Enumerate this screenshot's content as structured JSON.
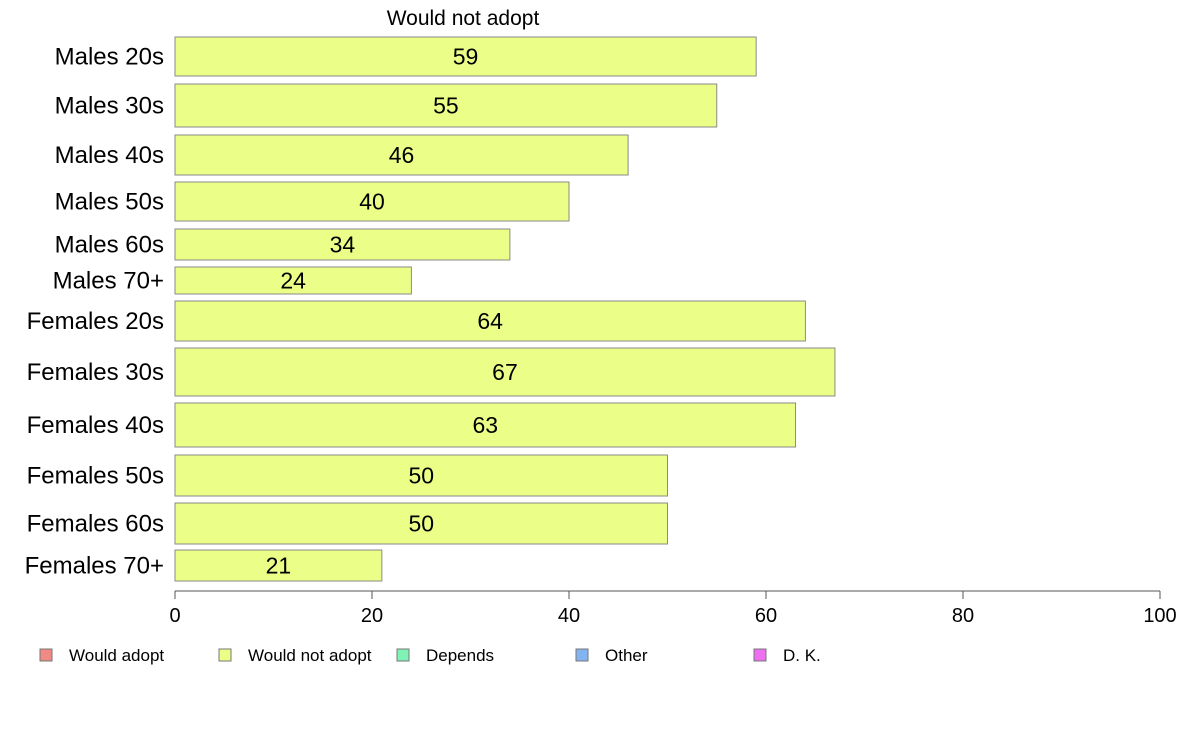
{
  "chart_data": {
    "type": "bar",
    "orientation": "horizontal",
    "title": "Would not adopt",
    "categories": [
      "Males 20s",
      "Males 30s",
      "Males 40s",
      "Males 50s",
      "Males 60s",
      "Males 70+",
      "Females 20s",
      "Females 30s",
      "Females 40s",
      "Females 50s",
      "Females 60s",
      "Females 70+"
    ],
    "series": [
      {
        "name": "Would not adopt",
        "color": "#ebff88",
        "values": [
          59,
          55,
          46,
          40,
          34,
          24,
          64,
          67,
          63,
          50,
          50,
          21
        ]
      }
    ],
    "bar_labels": [
      "59",
      "55",
      "46",
      "40",
      "34",
      "24",
      "64",
      "67",
      "63",
      "50",
      "50",
      "21"
    ],
    "xlim": [
      0,
      100
    ],
    "x_ticks": [
      0,
      20,
      40,
      60,
      80,
      100
    ],
    "x_tick_labels": [
      "0",
      "20",
      "40",
      "60",
      "80",
      "100"
    ],
    "grid": false,
    "legend": {
      "placement": "bottom-left",
      "items": [
        {
          "label": "Would adopt",
          "color": "#f08a84"
        },
        {
          "label": "Would not adopt",
          "color": "#ebff88"
        },
        {
          "label": "Depends",
          "color": "#7ff2b4"
        },
        {
          "label": "Other",
          "color": "#82b4f2"
        },
        {
          "label": "D. K.",
          "color": "#ee6ff0"
        }
      ]
    }
  }
}
